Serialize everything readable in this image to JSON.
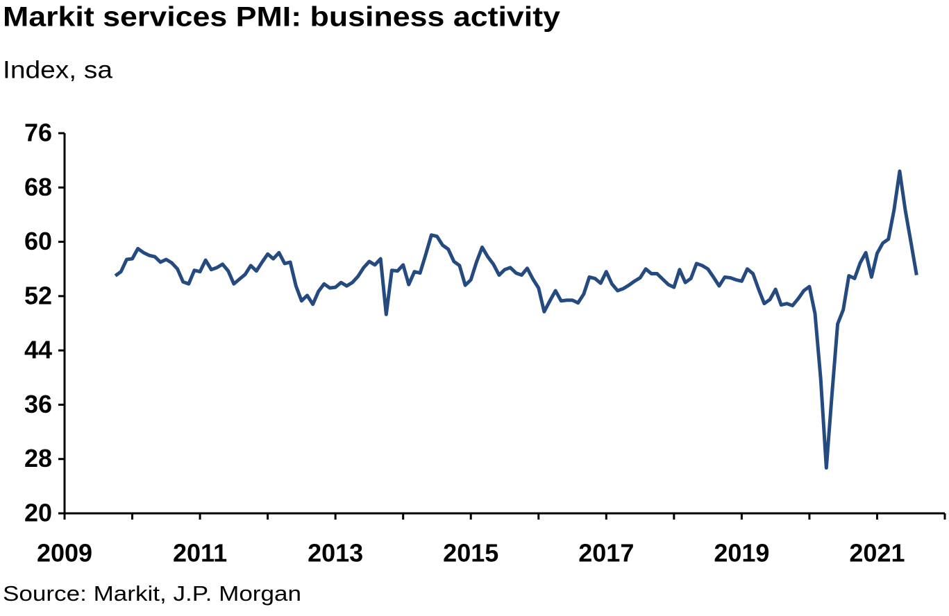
{
  "chart_data": {
    "type": "line",
    "title": "Markit services PMI: business activity",
    "subtitle": "Index, sa",
    "source": "Source: Markit, J.P. Morgan",
    "xlim": [
      2009,
      2022
    ],
    "xticks": [
      2009,
      2011,
      2013,
      2015,
      2017,
      2019,
      2021
    ],
    "xminor_ticks": [
      2010,
      2012,
      2014,
      2016,
      2018,
      2020,
      2022
    ],
    "ylim": [
      20,
      76
    ],
    "yticks": [
      20,
      28,
      36,
      44,
      52,
      60,
      68,
      76
    ],
    "grid": false,
    "x": [
      2009.75,
      2009.833,
      2009.917,
      2010.0,
      2010.083,
      2010.167,
      2010.25,
      2010.333,
      2010.417,
      2010.5,
      2010.583,
      2010.667,
      2010.75,
      2010.833,
      2010.917,
      2011.0,
      2011.083,
      2011.167,
      2011.25,
      2011.333,
      2011.417,
      2011.5,
      2011.583,
      2011.667,
      2011.75,
      2011.833,
      2011.917,
      2012.0,
      2012.083,
      2012.167,
      2012.25,
      2012.333,
      2012.417,
      2012.5,
      2012.583,
      2012.667,
      2012.75,
      2012.833,
      2012.917,
      2013.0,
      2013.083,
      2013.167,
      2013.25,
      2013.333,
      2013.417,
      2013.5,
      2013.583,
      2013.667,
      2013.75,
      2013.833,
      2013.917,
      2014.0,
      2014.083,
      2014.167,
      2014.25,
      2014.333,
      2014.417,
      2014.5,
      2014.583,
      2014.667,
      2014.75,
      2014.833,
      2014.917,
      2015.0,
      2015.083,
      2015.167,
      2015.25,
      2015.333,
      2015.417,
      2015.5,
      2015.583,
      2015.667,
      2015.75,
      2015.833,
      2015.917,
      2016.0,
      2016.083,
      2016.167,
      2016.25,
      2016.333,
      2016.417,
      2016.5,
      2016.583,
      2016.667,
      2016.75,
      2016.833,
      2016.917,
      2017.0,
      2017.083,
      2017.167,
      2017.25,
      2017.333,
      2017.417,
      2017.5,
      2017.583,
      2017.667,
      2017.75,
      2017.833,
      2017.917,
      2018.0,
      2018.083,
      2018.167,
      2018.25,
      2018.333,
      2018.417,
      2018.5,
      2018.583,
      2018.667,
      2018.75,
      2018.833,
      2018.917,
      2019.0,
      2019.083,
      2019.167,
      2019.25,
      2019.333,
      2019.417,
      2019.5,
      2019.583,
      2019.667,
      2019.75,
      2019.833,
      2019.917,
      2020.0,
      2020.083,
      2020.167,
      2020.25,
      2020.333,
      2020.417,
      2020.5,
      2020.583,
      2020.667,
      2020.75,
      2020.833,
      2020.917,
      2021.0,
      2021.083,
      2021.167,
      2021.25,
      2021.333,
      2021.417,
      2021.5,
      2021.583
    ],
    "series": [
      {
        "color": "#254a80",
        "values": [
          55.0,
          55.6,
          57.4,
          57.5,
          59.0,
          58.4,
          58.0,
          57.8,
          57.0,
          57.4,
          56.9,
          56.0,
          54.1,
          53.8,
          55.8,
          55.6,
          57.3,
          55.9,
          56.2,
          56.7,
          55.7,
          53.8,
          54.5,
          55.2,
          56.5,
          55.7,
          57.0,
          58.2,
          57.5,
          58.4,
          56.8,
          57.0,
          53.5,
          51.3,
          52.1,
          50.8,
          52.7,
          53.8,
          53.2,
          53.3,
          54.0,
          53.5,
          54.0,
          54.9,
          56.2,
          57.1,
          56.6,
          57.5,
          49.3,
          55.8,
          55.7,
          56.6,
          53.7,
          55.6,
          55.4,
          58.1,
          61.0,
          60.8,
          59.5,
          58.9,
          57.1,
          56.5,
          53.6,
          54.4,
          57.0,
          59.2,
          57.8,
          56.7,
          55.1,
          55.9,
          56.2,
          55.4,
          55.1,
          56.1,
          54.5,
          53.2,
          49.7,
          51.3,
          52.8,
          51.3,
          51.4,
          51.4,
          51.0,
          52.3,
          54.8,
          54.6,
          53.9,
          55.6,
          53.8,
          52.8,
          53.1,
          53.6,
          54.2,
          54.7,
          56.0,
          55.3,
          55.3,
          54.5,
          53.7,
          53.3,
          55.9,
          54.0,
          54.6,
          56.8,
          56.5,
          56.0,
          54.8,
          53.5,
          54.8,
          54.7,
          54.4,
          54.2,
          56.0,
          55.3,
          53.0,
          50.9,
          51.5,
          53.0,
          50.7,
          50.9,
          50.6,
          51.6,
          52.8,
          53.4,
          49.4,
          39.8,
          26.7,
          37.5,
          47.9,
          50.0,
          55.0,
          54.6,
          56.9,
          58.4,
          54.8,
          58.3,
          59.8,
          60.4,
          64.7,
          70.4,
          64.6,
          59.9,
          55.1
        ]
      }
    ]
  }
}
